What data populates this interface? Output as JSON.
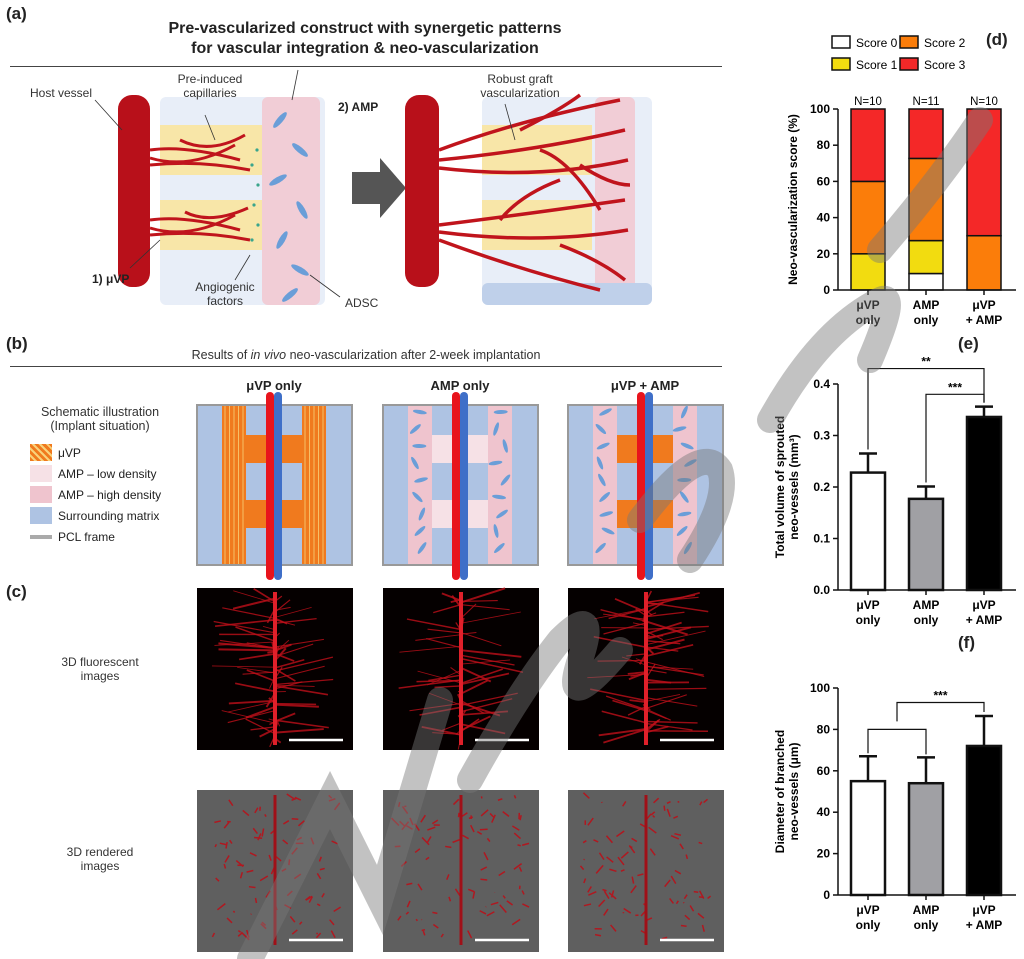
{
  "panel_a": {
    "label": "(a)",
    "title_line1": "Pre-vascularized construct with synergetic patterns",
    "title_line2": "for vascular integration & neo-vascularization",
    "host_vessel": "Host vessel",
    "pre_induced": "Pre-induced\ncapillaries",
    "amp": "2) AMP",
    "uvp": "1) μVP",
    "angiogenic": "Angiogenic\nfactors",
    "adsc": "ADSC",
    "robust": "Robust graft\nvascularization"
  },
  "panel_b": {
    "label": "(b)",
    "heading_pre": "Results of ",
    "heading_italic": "in vivo",
    "heading_post": " neo-vascularization after 2-week implantation",
    "columns": [
      "μVP only",
      "AMP only",
      "μVP + AMP"
    ],
    "legend_title": "Schematic illustration\n(Implant situation)",
    "legend": [
      {
        "label": "μVP",
        "color": "#f07a1e"
      },
      {
        "label": "AMP – low density",
        "color": "#f6e1e6"
      },
      {
        "label": "AMP – high density",
        "color": "#efc4ce"
      },
      {
        "label": "Surrounding matrix",
        "color": "#aec3e3"
      },
      {
        "label": "PCL frame",
        "color": "#aaaaaa"
      }
    ]
  },
  "panel_c": {
    "label": "(c)",
    "row1": "3D fluorescent\nimages",
    "row2": "3D rendered\nimages"
  },
  "watermark": "Manuscript",
  "chart_data": [
    {
      "id": "d",
      "label": "(d)",
      "type": "bar",
      "stacked": true,
      "categories": [
        "μVP\nonly",
        "AMP\nonly",
        "μVP\n+ AMP"
      ],
      "n_labels": [
        "N=10",
        "N=11",
        "N=10"
      ],
      "ylabel": "Neo-vascularization score (%)",
      "ylim": [
        0,
        100
      ],
      "yticks": [
        0,
        20,
        40,
        60,
        80,
        100
      ],
      "legend": "top",
      "series": [
        {
          "name": "Score 0",
          "color": "#ffffff",
          "values": [
            0,
            9.1,
            0
          ]
        },
        {
          "name": "Score 1",
          "color": "#f2dc10",
          "values": [
            20,
            18.2,
            0
          ]
        },
        {
          "name": "Score 2",
          "color": "#fb7d0a",
          "values": [
            40,
            45.4,
            30
          ]
        },
        {
          "name": "Score 3",
          "color": "#f42828",
          "values": [
            40,
            27.3,
            70
          ]
        }
      ]
    },
    {
      "id": "e",
      "label": "(e)",
      "type": "bar",
      "categories": [
        "μVP\nonly",
        "AMP\nonly",
        "μVP\n+ AMP"
      ],
      "ylabel": "Total volume of sprouted\nneo-vessels (mm³)",
      "ylim": [
        0,
        0.4
      ],
      "yticks": [
        "0.0",
        "0.1",
        "0.2",
        "0.3",
        "0.4"
      ],
      "values": [
        0.228,
        0.177,
        0.336
      ],
      "errors": [
        0.037,
        0.024,
        0.02
      ],
      "colors": [
        "#ffffff",
        "#a0a0a4",
        "#000000"
      ],
      "significance": [
        {
          "pair": [
            0,
            2
          ],
          "label": "**"
        },
        {
          "pair": [
            1,
            2
          ],
          "label": "***"
        }
      ]
    },
    {
      "id": "f",
      "label": "(f)",
      "type": "bar",
      "categories": [
        "μVP\nonly",
        "AMP\nonly",
        "μVP\n+ AMP"
      ],
      "ylabel": "Diameter of branched\nneo-vessels (μm)",
      "ylim": [
        0,
        100
      ],
      "yticks": [
        "0",
        "20",
        "40",
        "60",
        "80",
        "100"
      ],
      "values": [
        55,
        54,
        72
      ],
      "errors": [
        12,
        12.5,
        14.5
      ],
      "colors": [
        "#ffffff",
        "#a0a0a4",
        "#000000"
      ],
      "significance": [
        {
          "pair": [
            "0-1",
            2
          ],
          "label": "***"
        }
      ]
    }
  ]
}
